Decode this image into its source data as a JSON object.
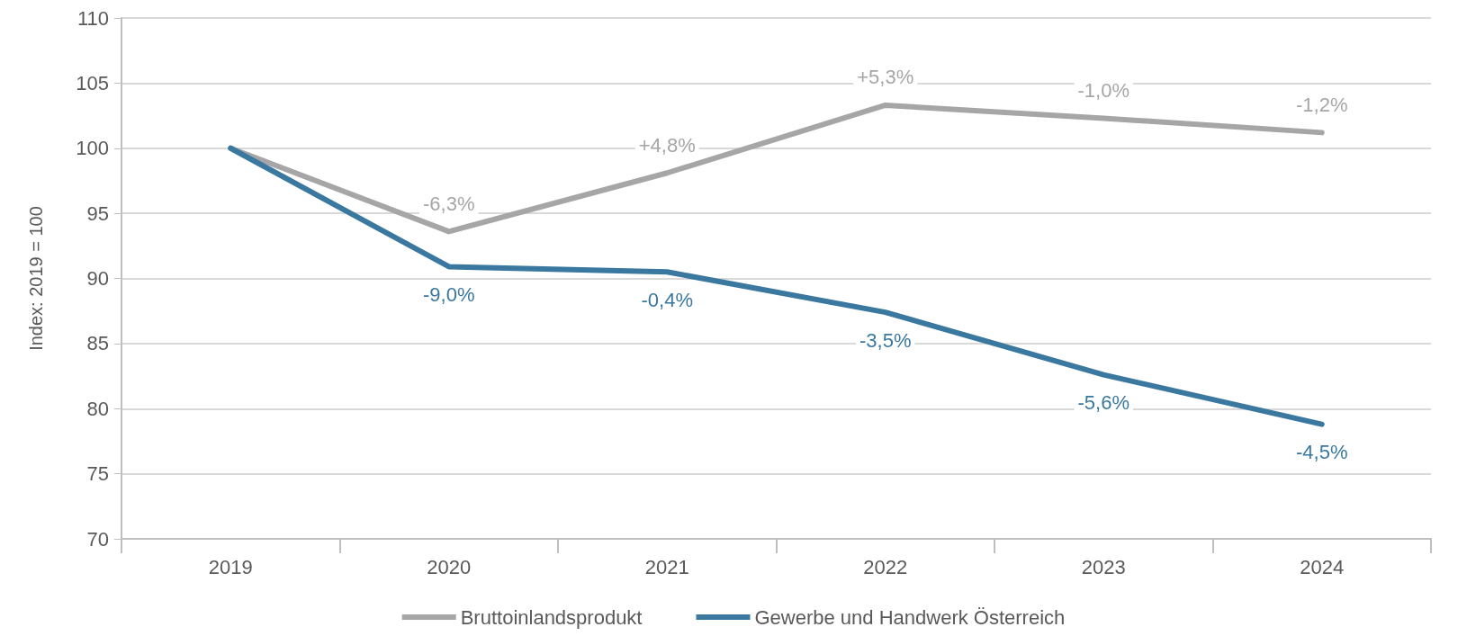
{
  "chart_data": {
    "type": "line",
    "ylabel": "Index: 2019 = 100",
    "categories": [
      "2019",
      "2020",
      "2021",
      "2022",
      "2023",
      "2024"
    ],
    "series": [
      {
        "name": "Bruttoinlandsprodukt",
        "color": "#a6a6a6",
        "values": [
          100,
          93.6,
          98.1,
          103.3,
          102.3,
          101.2
        ]
      },
      {
        "name": "Gewerbe und Handwerk Österreich",
        "color": "#3a78a0",
        "values": [
          100,
          90.9,
          90.5,
          87.4,
          82.6,
          78.8
        ]
      }
    ],
    "annotations": [
      {
        "text": "-6,3%",
        "x": "2020",
        "y": 93.6
      },
      {
        "text": "+4,8%",
        "x": "2021",
        "y": 98.1
      },
      {
        "text": "+5,3%",
        "x": "2022",
        "y": 103.3
      },
      {
        "text": "-1,0%",
        "x": "2023",
        "y": 102.3
      },
      {
        "text": "-1,2%",
        "x": "2024",
        "y": 101.2
      },
      {
        "text": "-9,0%",
        "x": "2020",
        "y": 90.9
      },
      {
        "text": "-0,4%",
        "x": "2021",
        "y": 90.5
      },
      {
        "text": "-3,5%",
        "x": "2022",
        "y": 87.4
      },
      {
        "text": "-5,6%",
        "x": "2023",
        "y": 82.6
      },
      {
        "text": "-4,5%",
        "x": "2024",
        "y": 78.8
      }
    ],
    "ylim": [
      70,
      110
    ],
    "yticks": [
      70,
      75,
      80,
      85,
      90,
      95,
      100,
      105,
      110
    ],
    "grid": "y",
    "legend": "bottom",
    "marker": "none",
    "line_style": "solid"
  }
}
